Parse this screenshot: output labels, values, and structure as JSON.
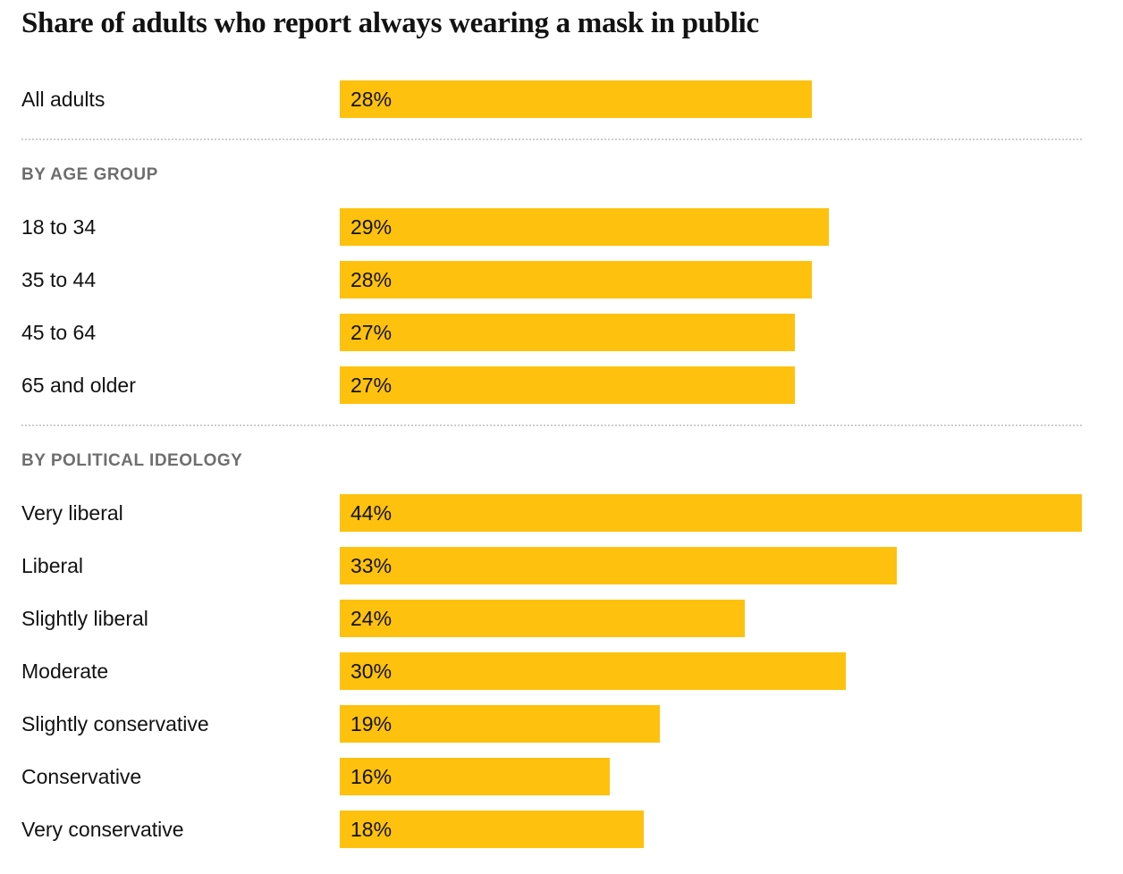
{
  "title": "Share of adults who report always wearing a mask in public",
  "colors": {
    "bar": "#FEC10D",
    "text": "#121212",
    "section_header": "#6E6E6E",
    "divider": "#CCCCCC"
  },
  "chart_data": {
    "type": "bar",
    "orientation": "horizontal",
    "title": "Share of adults who report always wearing a mask in public",
    "value_unit": "percent",
    "xlim": [
      0,
      44
    ],
    "grid": false,
    "legend": false,
    "value_labels_inside_bars": true,
    "sections": [
      {
        "header": "",
        "rows": [
          {
            "label": "All adults",
            "value": 28,
            "value_label": "28%"
          }
        ]
      },
      {
        "header": "BY AGE GROUP",
        "rows": [
          {
            "label": "18 to 34",
            "value": 29,
            "value_label": "29%"
          },
          {
            "label": "35 to 44",
            "value": 28,
            "value_label": "28%"
          },
          {
            "label": "45 to 64",
            "value": 27,
            "value_label": "27%"
          },
          {
            "label": "65 and older",
            "value": 27,
            "value_label": "27%"
          }
        ]
      },
      {
        "header": "BY POLITICAL IDEOLOGY",
        "rows": [
          {
            "label": "Very liberal",
            "value": 44,
            "value_label": "44%"
          },
          {
            "label": "Liberal",
            "value": 33,
            "value_label": "33%"
          },
          {
            "label": "Slightly liberal",
            "value": 24,
            "value_label": "24%"
          },
          {
            "label": "Moderate",
            "value": 30,
            "value_label": "30%"
          },
          {
            "label": "Slightly conservative",
            "value": 19,
            "value_label": "19%"
          },
          {
            "label": "Conservative",
            "value": 16,
            "value_label": "16%"
          },
          {
            "label": "Very conservative",
            "value": 18,
            "value_label": "18%"
          }
        ]
      }
    ]
  }
}
